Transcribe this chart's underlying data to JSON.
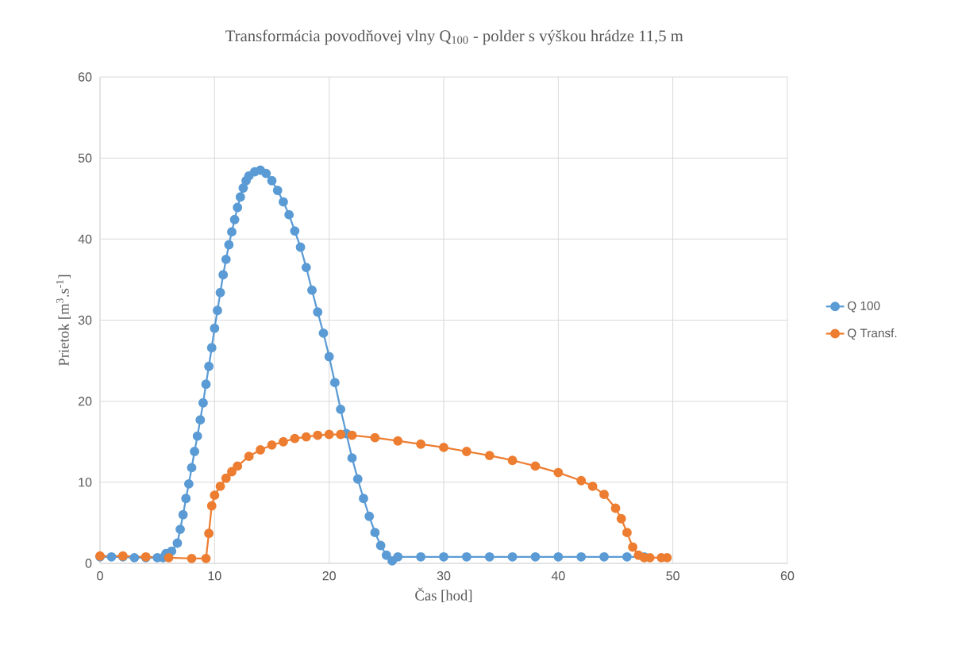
{
  "chart_data": {
    "type": "line",
    "title": "Transformácia povodňovej vlny Q$_{100}$ - polder s výškou hrádze 11,5 m",
    "xlabel": "Čas [hod]",
    "ylabel": "Prietok [m$^{3}$.s$^{-1}$]",
    "xlim": [
      0,
      60
    ],
    "ylim": [
      0,
      60
    ],
    "xticks": [
      0,
      10,
      20,
      30,
      40,
      50,
      60
    ],
    "yticks": [
      0,
      10,
      20,
      30,
      40,
      50,
      60
    ],
    "grid": true,
    "legend": "right",
    "marker": "circle",
    "line_style": "solid",
    "series": [
      {
        "name": "Q 100",
        "color": "#5b9bd5",
        "x": [
          0,
          1,
          2,
          3,
          4,
          5,
          5.5,
          5.75,
          6.25,
          6.75,
          7,
          7.25,
          7.5,
          7.75,
          8,
          8.25,
          8.5,
          8.75,
          9,
          9.25,
          9.5,
          9.75,
          10,
          10.25,
          10.5,
          10.75,
          11,
          11.25,
          11.5,
          11.75,
          12,
          12.25,
          12.5,
          12.75,
          13,
          13.5,
          14,
          14.5,
          15,
          15.5,
          16,
          16.5,
          17,
          17.5,
          18,
          18.5,
          19,
          19.5,
          20,
          20.5,
          21,
          21.5,
          22,
          22.5,
          23,
          23.5,
          24,
          24.5,
          25,
          25.5,
          26,
          28,
          30,
          32,
          34,
          36,
          38,
          40,
          42,
          44,
          46,
          47.5
        ],
        "values": [
          0.8,
          0.8,
          0.8,
          0.7,
          0.7,
          0.7,
          0.7,
          1.2,
          1.5,
          2.5,
          4.2,
          6,
          8,
          9.8,
          11.8,
          13.8,
          15.7,
          17.7,
          19.8,
          22.1,
          24.3,
          26.6,
          29,
          31.2,
          33.4,
          35.6,
          37.5,
          39.3,
          40.9,
          42.4,
          43.9,
          45.2,
          46.3,
          47.2,
          47.8,
          48.3,
          48.5,
          48.1,
          47.2,
          46,
          44.6,
          43,
          41,
          39,
          36.5,
          33.7,
          31,
          28.4,
          25.5,
          22.3,
          19,
          16,
          13,
          10.4,
          8,
          5.8,
          3.8,
          2.2,
          1,
          0.3,
          0.8,
          0.8,
          0.8,
          0.8,
          0.8,
          0.8,
          0.8,
          0.8,
          0.8,
          0.8,
          0.8,
          0.8
        ]
      },
      {
        "name": "Q Transf.",
        "color": "#ed7d31",
        "x": [
          0,
          2,
          4,
          6,
          8,
          9.25,
          9.5,
          9.75,
          10,
          10.5,
          11,
          11.5,
          12,
          13,
          14,
          15,
          16,
          17,
          18,
          19,
          20,
          21,
          22,
          24,
          26,
          28,
          30,
          32,
          34,
          36,
          38,
          40,
          42,
          43,
          44,
          45,
          45.5,
          46,
          46.5,
          47,
          47.5,
          48,
          49,
          49.5
        ],
        "values": [
          0.9,
          0.9,
          0.8,
          0.7,
          0.6,
          0.6,
          3.7,
          7.1,
          8.4,
          9.5,
          10.5,
          11.3,
          12,
          13.2,
          14,
          14.6,
          15,
          15.4,
          15.6,
          15.8,
          15.9,
          15.9,
          15.8,
          15.5,
          15.1,
          14.7,
          14.3,
          13.8,
          13.3,
          12.7,
          12,
          11.2,
          10.2,
          9.5,
          8.5,
          6.8,
          5.5,
          3.8,
          2,
          1,
          0.7,
          0.7,
          0.7,
          0.7
        ]
      }
    ]
  }
}
